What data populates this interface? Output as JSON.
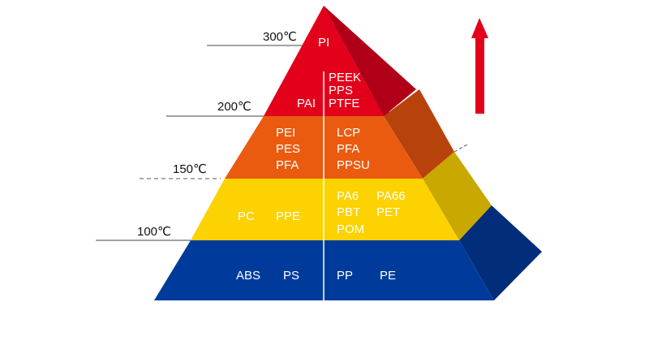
{
  "temperatures": {
    "t300": "300℃",
    "t200": "200℃",
    "t150": "150℃",
    "t100": "100℃"
  },
  "tiers": {
    "top": {
      "color": "#e3001b",
      "labels": {
        "pi": "PI",
        "pai": "PAI",
        "peek": "PEEK",
        "pps": "PPS",
        "ptfe": "PTFE"
      }
    },
    "upper_middle": {
      "color": "#ea5b10",
      "labels": {
        "pei": "PEI",
        "pes": "PES",
        "pfa_left": "PFA",
        "lcp": "LCP",
        "pfa_right": "PFA",
        "ppsu": "PPSU"
      }
    },
    "lower_middle": {
      "color": "#fcd200",
      "labels": {
        "pc": "PC",
        "ppe": "PPE",
        "pa6": "PA6",
        "pa66": "PA66",
        "pbt": "PBT",
        "pet": "PET",
        "pom": "POM"
      }
    },
    "base": {
      "color": "#003b9c",
      "labels": {
        "abs": "ABS",
        "ps": "PS",
        "pp": "PP",
        "pe": "PE"
      }
    }
  },
  "arrow": {
    "color": "#e3001b",
    "icon": "up-arrow-icon"
  }
}
